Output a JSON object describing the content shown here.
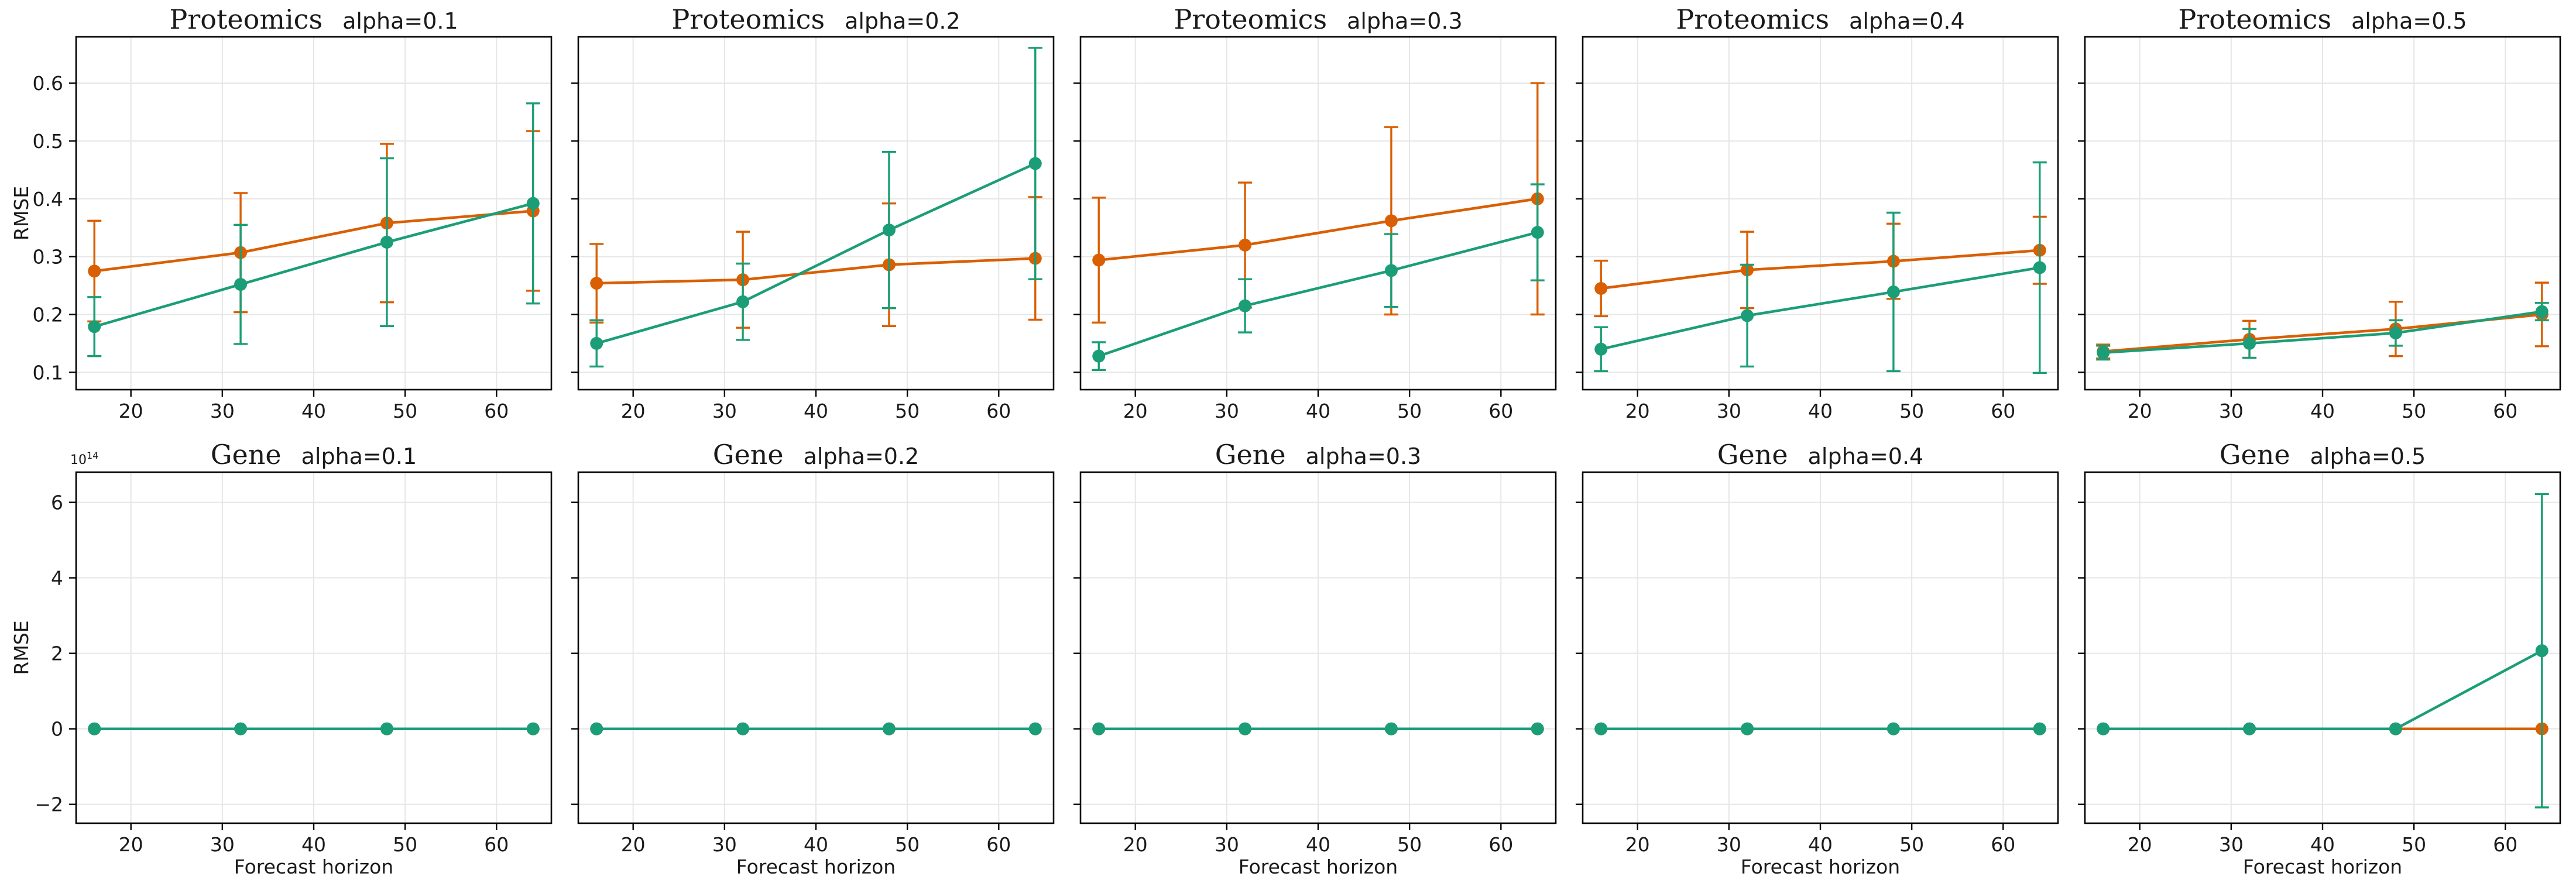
{
  "colors": {
    "orange": "#d95f02",
    "teal": "#1b9e77",
    "grid": "#e6e6e6",
    "axis": "#000000"
  },
  "chart_data": [
    {
      "type": "line",
      "title": "Proteomics",
      "subtitle": "alpha=0.1",
      "xlabel": "",
      "ylabel": "RMSE",
      "ylim": [
        0.07,
        0.68
      ],
      "xlim": [
        14,
        66
      ],
      "xticks": [
        "20",
        "30",
        "40",
        "50",
        "60"
      ],
      "yticks": [
        "0.1",
        "0.2",
        "0.3",
        "0.4",
        "0.5",
        "0.6"
      ],
      "x": [
        16,
        32,
        48,
        64
      ],
      "series": [
        {
          "color": "#d95f02",
          "values": [
            0.275,
            0.307,
            0.358,
            0.379
          ],
          "err": [
            0.087,
            0.103,
            0.137,
            0.138
          ]
        },
        {
          "color": "#1b9e77",
          "values": [
            0.179,
            0.252,
            0.325,
            0.392
          ],
          "err": [
            0.051,
            0.103,
            0.145,
            0.173
          ]
        }
      ],
      "grid": true
    },
    {
      "type": "line",
      "title": "Proteomics",
      "subtitle": "alpha=0.2",
      "xlabel": "",
      "ylabel": "",
      "ylim": [
        0.07,
        0.68
      ],
      "xlim": [
        14,
        66
      ],
      "xticks": [
        "20",
        "30",
        "40",
        "50",
        "60"
      ],
      "yticks": [],
      "x": [
        16,
        32,
        48,
        64
      ],
      "series": [
        {
          "color": "#d95f02",
          "values": [
            0.254,
            0.26,
            0.286,
            0.297
          ],
          "err": [
            0.068,
            0.083,
            0.106,
            0.106
          ]
        },
        {
          "color": "#1b9e77",
          "values": [
            0.15,
            0.222,
            0.346,
            0.461
          ],
          "err": [
            0.04,
            0.066,
            0.135,
            0.2
          ]
        }
      ],
      "grid": true
    },
    {
      "type": "line",
      "title": "Proteomics",
      "subtitle": "alpha=0.3",
      "xlabel": "",
      "ylabel": "",
      "ylim": [
        0.07,
        0.68
      ],
      "xlim": [
        14,
        66
      ],
      "xticks": [
        "20",
        "30",
        "40",
        "50",
        "60"
      ],
      "yticks": [],
      "x": [
        16,
        32,
        48,
        64
      ],
      "series": [
        {
          "color": "#d95f02",
          "values": [
            0.294,
            0.32,
            0.362,
            0.4
          ],
          "err": [
            0.108,
            0.108,
            0.162,
            0.2
          ]
        },
        {
          "color": "#1b9e77",
          "values": [
            0.128,
            0.215,
            0.276,
            0.342
          ],
          "err": [
            0.024,
            0.046,
            0.063,
            0.083
          ]
        }
      ],
      "grid": true
    },
    {
      "type": "line",
      "title": "Proteomics",
      "subtitle": "alpha=0.4",
      "xlabel": "",
      "ylabel": "",
      "ylim": [
        0.07,
        0.68
      ],
      "xlim": [
        14,
        66
      ],
      "xticks": [
        "20",
        "30",
        "40",
        "50",
        "60"
      ],
      "yticks": [],
      "x": [
        16,
        32,
        48,
        64
      ],
      "series": [
        {
          "color": "#d95f02",
          "values": [
            0.245,
            0.277,
            0.292,
            0.311
          ],
          "err": [
            0.048,
            0.066,
            0.065,
            0.058
          ]
        },
        {
          "color": "#1b9e77",
          "values": [
            0.14,
            0.198,
            0.239,
            0.281
          ],
          "err": [
            0.038,
            0.088,
            0.137,
            0.182
          ]
        }
      ],
      "grid": true
    },
    {
      "type": "line",
      "title": "Proteomics",
      "subtitle": "alpha=0.5",
      "xlabel": "",
      "ylabel": "",
      "ylim": [
        0.07,
        0.68
      ],
      "xlim": [
        14,
        66
      ],
      "xticks": [
        "20",
        "30",
        "40",
        "50",
        "60"
      ],
      "yticks": [],
      "x": [
        16,
        32,
        48,
        64
      ],
      "series": [
        {
          "color": "#d95f02",
          "values": [
            0.136,
            0.157,
            0.175,
            0.2
          ],
          "err": [
            0.012,
            0.032,
            0.047,
            0.055
          ]
        },
        {
          "color": "#1b9e77",
          "values": [
            0.134,
            0.15,
            0.168,
            0.205
          ],
          "err": [
            0.012,
            0.025,
            0.022,
            0.015
          ]
        }
      ],
      "grid": true
    },
    {
      "type": "line",
      "title": "Gene",
      "subtitle": "alpha=0.1",
      "xlabel": "Forecast horizon",
      "ylabel": "RMSE",
      "ylim": [
        -2.5,
        6.8
      ],
      "xlim": [
        14,
        66
      ],
      "xticks": [
        "20",
        "30",
        "40",
        "50",
        "60"
      ],
      "yticks": [
        "−2",
        "0",
        "2",
        "4",
        "6"
      ],
      "yexp": "1e14",
      "x": [
        16,
        32,
        48,
        64
      ],
      "series": [
        {
          "color": "#d95f02",
          "values": [
            0,
            0,
            0,
            0
          ],
          "err": [
            0,
            0,
            0,
            0
          ]
        },
        {
          "color": "#1b9e77",
          "values": [
            0,
            0,
            0,
            0
          ],
          "err": [
            0,
            0,
            0,
            0
          ]
        }
      ],
      "grid": true
    },
    {
      "type": "line",
      "title": "Gene",
      "subtitle": "alpha=0.2",
      "xlabel": "Forecast horizon",
      "ylabel": "",
      "ylim": [
        -2.5,
        6.8
      ],
      "xlim": [
        14,
        66
      ],
      "xticks": [
        "20",
        "30",
        "40",
        "50",
        "60"
      ],
      "yticks": [],
      "x": [
        16,
        32,
        48,
        64
      ],
      "series": [
        {
          "color": "#d95f02",
          "values": [
            0,
            0,
            0,
            0
          ],
          "err": [
            0,
            0,
            0,
            0
          ]
        },
        {
          "color": "#1b9e77",
          "values": [
            0,
            0,
            0,
            0
          ],
          "err": [
            0,
            0,
            0,
            0
          ]
        }
      ],
      "grid": true
    },
    {
      "type": "line",
      "title": "Gene",
      "subtitle": "alpha=0.3",
      "xlabel": "Forecast horizon",
      "ylabel": "",
      "ylim": [
        -2.5,
        6.8
      ],
      "xlim": [
        14,
        66
      ],
      "xticks": [
        "20",
        "30",
        "40",
        "50",
        "60"
      ],
      "yticks": [],
      "x": [
        16,
        32,
        48,
        64
      ],
      "series": [
        {
          "color": "#d95f02",
          "values": [
            0,
            0,
            0,
            0
          ],
          "err": [
            0,
            0,
            0,
            0
          ]
        },
        {
          "color": "#1b9e77",
          "values": [
            0,
            0,
            0,
            0
          ],
          "err": [
            0,
            0,
            0,
            0
          ]
        }
      ],
      "grid": true
    },
    {
      "type": "line",
      "title": "Gene",
      "subtitle": "alpha=0.4",
      "xlabel": "Forecast horizon",
      "ylabel": "",
      "ylim": [
        -2.5,
        6.8
      ],
      "xlim": [
        14,
        66
      ],
      "xticks": [
        "20",
        "30",
        "40",
        "50",
        "60"
      ],
      "yticks": [],
      "x": [
        16,
        32,
        48,
        64
      ],
      "series": [
        {
          "color": "#d95f02",
          "values": [
            0,
            0,
            0,
            0
          ],
          "err": [
            0,
            0,
            0,
            0
          ]
        },
        {
          "color": "#1b9e77",
          "values": [
            0,
            0,
            0,
            0
          ],
          "err": [
            0,
            0,
            0,
            0
          ]
        }
      ],
      "grid": true
    },
    {
      "type": "line",
      "title": "Gene",
      "subtitle": "alpha=0.5",
      "xlabel": "Forecast horizon",
      "ylabel": "",
      "ylim": [
        -2.5,
        6.8
      ],
      "xlim": [
        14,
        66
      ],
      "xticks": [
        "20",
        "30",
        "40",
        "50",
        "60"
      ],
      "yticks": [],
      "x": [
        16,
        32,
        48,
        64
      ],
      "series": [
        {
          "color": "#d95f02",
          "values": [
            0,
            0,
            0,
            0
          ],
          "err": [
            0,
            0,
            0,
            0
          ]
        },
        {
          "color": "#1b9e77",
          "values": [
            0,
            0,
            0,
            2.07
          ],
          "err": [
            0,
            0,
            0,
            4.15
          ]
        }
      ],
      "grid": true
    }
  ]
}
